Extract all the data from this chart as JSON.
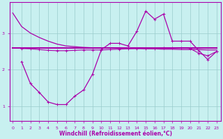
{
  "xlabel": "Windchill (Refroidissement éolien,°C)",
  "background_color": "#c8f0f0",
  "line_color": "#aa00aa",
  "grid_color": "#99cccc",
  "x_ticks": [
    0,
    1,
    2,
    3,
    4,
    5,
    6,
    7,
    8,
    9,
    10,
    11,
    12,
    13,
    14,
    15,
    16,
    17,
    18,
    19,
    20,
    21,
    22,
    23
  ],
  "y_ticks": [
    1,
    2,
    3
  ],
  "ylim": [
    0.6,
    3.85
  ],
  "xlim": [
    -0.3,
    23.5
  ],
  "line1_x": [
    0,
    1,
    2,
    3,
    4,
    5,
    6,
    7,
    8,
    9,
    10,
    11,
    12,
    13,
    14,
    15,
    16,
    17,
    18,
    19,
    20,
    21,
    22,
    23
  ],
  "line1_y": [
    3.55,
    3.18,
    3.0,
    2.88,
    2.78,
    2.7,
    2.65,
    2.63,
    2.61,
    2.6,
    2.6,
    2.59,
    2.59,
    2.58,
    2.58,
    2.57,
    2.57,
    2.56,
    2.56,
    2.55,
    2.55,
    2.55,
    2.54,
    2.54
  ],
  "line2_x": [
    0,
    23
  ],
  "line2_y": [
    2.6,
    2.6
  ],
  "line3_x": [
    1,
    2,
    3,
    4,
    5,
    6,
    7,
    8,
    9,
    10,
    11,
    12,
    13,
    14,
    15,
    16,
    17,
    18,
    19,
    20,
    21,
    22,
    23
  ],
  "line3_y": [
    2.58,
    2.57,
    2.55,
    2.53,
    2.52,
    2.52,
    2.53,
    2.54,
    2.54,
    2.54,
    2.55,
    2.56,
    2.57,
    2.58,
    2.58,
    2.57,
    2.6,
    2.6,
    2.6,
    2.58,
    2.45,
    2.38,
    2.5
  ],
  "line4_x": [
    1,
    2,
    3,
    4,
    5,
    6,
    7,
    8,
    9,
    10,
    11,
    12,
    13,
    14,
    15,
    16,
    17,
    18,
    19,
    20,
    21,
    22,
    23
  ],
  "line4_y": [
    2.22,
    1.62,
    1.38,
    1.12,
    1.05,
    1.05,
    1.28,
    1.45,
    1.88,
    2.55,
    2.72,
    2.72,
    2.65,
    3.05,
    3.6,
    3.38,
    3.52,
    2.78,
    2.78,
    2.78,
    2.52,
    2.28,
    2.5
  ]
}
